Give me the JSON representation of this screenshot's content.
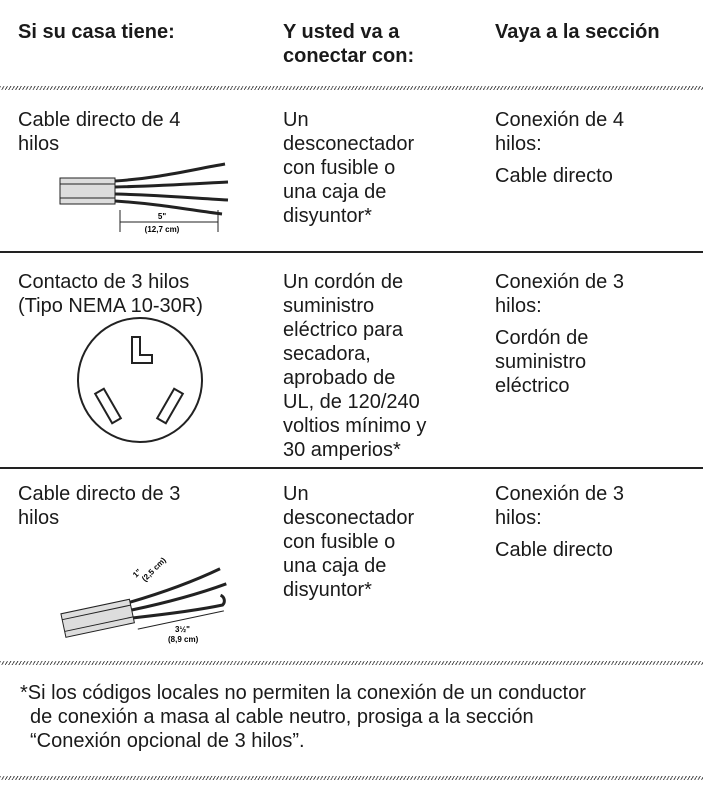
{
  "header": [
    [
      "Si su casa tiene:"
    ],
    [
      "Y usted va a",
      "conectar con:"
    ],
    [
      "Vaya a la sección"
    ]
  ],
  "rows": [
    {
      "cells": [
        [
          [
            "Cable directo de 4",
            "hilos"
          ]
        ],
        [
          [
            "Un",
            "desconectador",
            "con fusible o",
            "una caja de",
            "disyuntor*"
          ]
        ],
        [
          [
            "Conexión de 4",
            "hilos:"
          ],
          [
            "Cable directo"
          ]
        ]
      ],
      "figure": [
        "5\"",
        "(12,7 cm)"
      ]
    },
    {
      "cells": [
        [
          [
            "Contacto de 3 hilos",
            "(Tipo NEMA 10-30R)"
          ]
        ],
        [
          [
            "Un cordón de",
            "suministro",
            "eléctrico para",
            "secadora,",
            "aprobado de",
            "UL, de 120/240",
            "voltios mínimo y",
            "30 amperios*"
          ]
        ],
        [
          [
            "Conexión de 3",
            "hilos:"
          ],
          [
            "Cordón de",
            "suministro",
            "eléctrico"
          ]
        ]
      ]
    },
    {
      "cells": [
        [
          [
            "Cable directo de 3",
            "hilos"
          ]
        ],
        [
          [
            "Un",
            "desconectador",
            "con fusible o",
            "una caja de",
            "disyuntor*"
          ]
        ],
        [
          [
            "Conexión de 3",
            "hilos:"
          ],
          [
            "Cable directo"
          ]
        ]
      ],
      "figure": [
        "1\"",
        "(2,5 cm)",
        "3½\"",
        "(8,9 cm)"
      ]
    }
  ],
  "footnote": [
    "*Si los códigos locales no permiten la conexión de un conductor",
    "de conexión a masa al cable neutro, prosiga a la sección",
    "“Conexión opcional de 3 hilos”."
  ]
}
